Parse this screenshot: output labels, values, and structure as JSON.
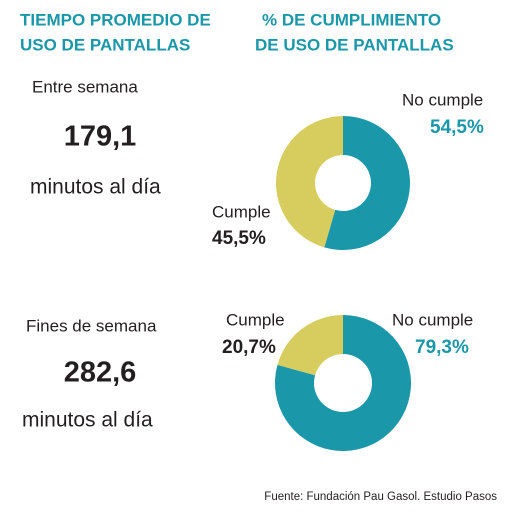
{
  "left_heading": [
    "TIEMPO PROMEDIO DE",
    "USO DE PANTALLAS"
  ],
  "right_heading": [
    "% DE CUMPLIMIENTO",
    "DE USO DE PANTALLAS"
  ],
  "stats": [
    {
      "label": "Entre semana",
      "value": "179,1",
      "unit": "minutos al día"
    },
    {
      "label": "Fines de semana",
      "value": "282,6",
      "unit": "minutos al día"
    }
  ],
  "chart_data": [
    {
      "type": "pie",
      "donut": true,
      "categories": [
        "No cumple",
        "Cumple"
      ],
      "values": [
        54.5,
        45.5
      ],
      "value_labels": [
        "54,5%",
        "45,5%"
      ],
      "colors": [
        "#1a97a8",
        "#d6cd5e"
      ],
      "label_colors": [
        "#1a97a8",
        "#231f20"
      ]
    },
    {
      "type": "pie",
      "donut": true,
      "categories": [
        "No cumple",
        "Cumple"
      ],
      "values": [
        79.3,
        20.7
      ],
      "value_labels": [
        "79,3%",
        "20,7%"
      ],
      "colors": [
        "#1a97a8",
        "#d6cd5e"
      ],
      "label_colors": [
        "#1a97a8",
        "#231f20"
      ]
    }
  ],
  "source": "Fuente: Fundación Pau Gasol. Estudio Pasos"
}
